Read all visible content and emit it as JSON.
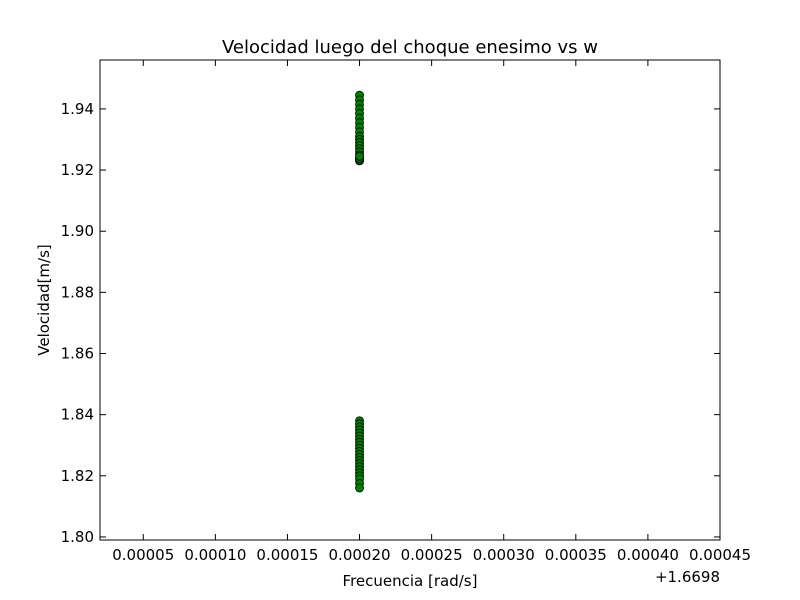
{
  "chart_data": {
    "type": "scatter",
    "title": "Velocidad luego del choque enesimo vs w",
    "xlabel": "Frecuencia [rad/s]",
    "ylabel": "Velocidad[m/s]",
    "x_offset_label": "+1.6698",
    "xlim": [
      2e-05,
      0.00045
    ],
    "ylim": [
      1.799,
      1.956
    ],
    "xticks": [
      5e-05,
      0.0001,
      0.00015,
      0.0002,
      0.00025,
      0.0003,
      0.00035,
      0.0004,
      0.00045
    ],
    "xtick_labels": [
      "0.00005",
      "0.00010",
      "0.00015",
      "0.00020",
      "0.00025",
      "0.00030",
      "0.00035",
      "0.00040",
      "0.00045"
    ],
    "yticks": [
      1.8,
      1.82,
      1.84,
      1.86,
      1.88,
      1.9,
      1.92,
      1.94
    ],
    "ytick_labels": [
      "1.80",
      "1.82",
      "1.84",
      "1.86",
      "1.88",
      "1.90",
      "1.92",
      "1.94"
    ],
    "grid": false,
    "marker_color": "#008000",
    "series": [
      {
        "x": [
          0.0002,
          0.0002,
          0.0002,
          0.0002,
          0.0002,
          0.0002,
          0.0002,
          0.0002,
          0.0002,
          0.0002,
          0.0002,
          0.0002,
          0.0002,
          0.0002,
          0.0002,
          0.0002,
          0.0002,
          0.0002,
          0.0002,
          0.0002,
          0.0002,
          0.0002,
          0.0002,
          0.0002,
          0.0002,
          0.0002,
          0.0002,
          0.0002,
          0.0002,
          0.0002,
          0.0002,
          0.0002,
          0.0002,
          0.0002,
          0.0002,
          0.0002,
          0.0002,
          0.0002,
          0.0002,
          0.0002,
          0.0002,
          0.0002,
          0.0002,
          0.0002
        ],
        "y": [
          1.9445,
          1.943,
          1.9415,
          1.94,
          1.9385,
          1.937,
          1.9355,
          1.934,
          1.9325,
          1.931,
          1.93,
          1.929,
          1.928,
          1.927,
          1.926,
          1.925,
          1.924,
          1.9235,
          1.923,
          1.9232,
          1.9238,
          1.9245,
          1.838,
          1.837,
          1.836,
          1.835,
          1.834,
          1.833,
          1.832,
          1.831,
          1.83,
          1.829,
          1.828,
          1.827,
          1.826,
          1.825,
          1.824,
          1.823,
          1.822,
          1.821,
          1.82,
          1.819,
          1.8175,
          1.816
        ]
      }
    ]
  }
}
